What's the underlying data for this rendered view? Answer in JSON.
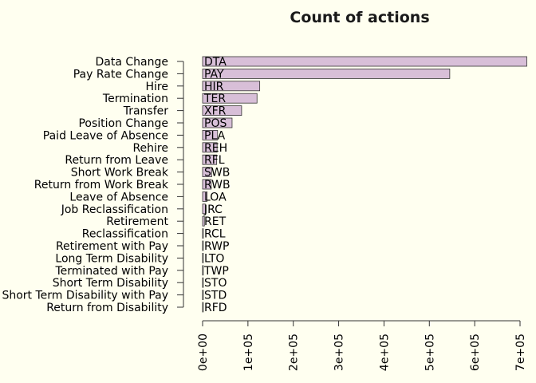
{
  "chart_data": {
    "type": "bar",
    "orientation": "horizontal",
    "title": "Count of actions",
    "xlabel": "",
    "ylabel": "",
    "xlim": [
      0,
      700000
    ],
    "x_ticks": [
      0,
      100000,
      200000,
      300000,
      400000,
      500000,
      600000,
      700000
    ],
    "x_tick_labels": [
      "0e+00",
      "1e+05",
      "2e+05",
      "3e+05",
      "4e+05",
      "5e+05",
      "6e+05",
      "7e+05"
    ],
    "bar_color": "#d8bfd8",
    "background_color": "#fffff0",
    "categories": [
      "Data Change",
      "Pay Rate Change",
      "Hire",
      "Termination",
      "Transfer",
      "Position Change",
      "Paid Leave of Absence",
      "Rehire",
      "Return from Leave",
      "Short Work Break",
      "Return from Work Break",
      "Leave of Absence",
      "Job Reclassification",
      "Retirement",
      "Reclassification",
      "Retirement with Pay",
      "Long Term Disability",
      "Terminated with Pay",
      "Short Term Disability",
      "Short Term Disability with Pay",
      "Return from Disability"
    ],
    "codes": [
      "DTA",
      "PAY",
      "HIR",
      "TER",
      "XFR",
      "POS",
      "PLA",
      "REH",
      "RFL",
      "SWB",
      "RWB",
      "LOA",
      "JRC",
      "RET",
      "RCL",
      "RWP",
      "LTO",
      "TWP",
      "STO",
      "STD",
      "RFD"
    ],
    "values": [
      715000,
      545000,
      126000,
      120000,
      86000,
      65000,
      33000,
      32000,
      31000,
      20000,
      19000,
      10000,
      6000,
      4000,
      1500,
      1000,
      800,
      700,
      600,
      500,
      400
    ]
  }
}
